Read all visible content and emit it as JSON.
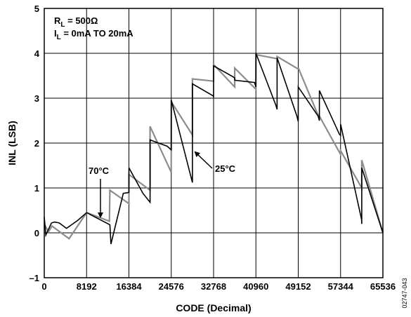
{
  "chart_data": {
    "type": "line",
    "xlabel": "CODE (Decimal)",
    "ylabel": "INL (LSB)",
    "xlim": [
      0,
      65536
    ],
    "ylim": [
      -1,
      5
    ],
    "xticks": [
      0,
      8192,
      16384,
      24576,
      32768,
      40960,
      49152,
      57344,
      65536
    ],
    "yticks": [
      -1,
      0,
      1,
      2,
      3,
      4,
      5
    ],
    "ytick_labels": [
      "–1",
      "0",
      "1",
      "2",
      "3",
      "4",
      "5"
    ],
    "grid": true,
    "conditions": [
      "R",
      "L",
      " = 500Ω",
      "I",
      "L",
      " = 0mA TO 20mA"
    ],
    "figure_id": "02747-043",
    "series": [
      {
        "name": "25°C",
        "color": "#000000",
        "x": [
          0,
          300,
          700,
          1400,
          2000,
          2900,
          4300,
          6500,
          8192,
          12700,
          12900,
          15300,
          16383,
          16385,
          19100,
          20479,
          20481,
          23800,
          24575,
          24577,
          27600,
          28671,
          28673,
          32700,
          32767,
          32769,
          36500,
          36863,
          36865,
          40700,
          40959,
          40961,
          44800,
          45055,
          45057,
          48900,
          49151,
          49153,
          53000,
          53247,
          53249,
          57100,
          57343,
          57345,
          61400,
          61439,
          61441,
          65536
        ],
        "y": [
          0.35,
          -0.05,
          0.05,
          0.22,
          0.24,
          0.22,
          0.1,
          0.28,
          0.45,
          0.18,
          -0.25,
          0.88,
          0.9,
          1.45,
          0.88,
          0.68,
          2.07,
          1.93,
          1.85,
          2.96,
          1.6,
          1.12,
          3.32,
          3.05,
          3.02,
          3.72,
          3.48,
          3.45,
          3.4,
          3.35,
          3.25,
          4.0,
          2.85,
          2.75,
          3.9,
          2.6,
          2.48,
          3.25,
          2.6,
          2.5,
          3.17,
          2.2,
          2.17,
          2.42,
          0.3,
          0.2,
          1.45,
          0.0
        ]
      },
      {
        "name": "70°C",
        "color": "#8c8c8c",
        "x": [
          0,
          800,
          1500,
          4800,
          8192,
          12600,
          12700,
          16383,
          16385,
          20479,
          20481,
          24575,
          24577,
          28671,
          28673,
          32767,
          32769,
          36863,
          36865,
          40959,
          40961,
          45055,
          45057,
          49151,
          49153,
          53247,
          53249,
          57343,
          57345,
          61439,
          61441,
          65536
        ],
        "y": [
          0.2,
          0.02,
          0.15,
          -0.13,
          0.45,
          0.26,
          0.95,
          0.65,
          1.3,
          0.95,
          2.37,
          1.35,
          2.92,
          2.18,
          3.43,
          3.38,
          3.75,
          3.25,
          3.67,
          3.2,
          3.97,
          3.88,
          3.93,
          3.65,
          3.68,
          2.55,
          2.6,
          1.75,
          1.83,
          1.0,
          1.62,
          0.0
        ]
      }
    ],
    "annotations": [
      "70°C",
      "25°C"
    ]
  }
}
